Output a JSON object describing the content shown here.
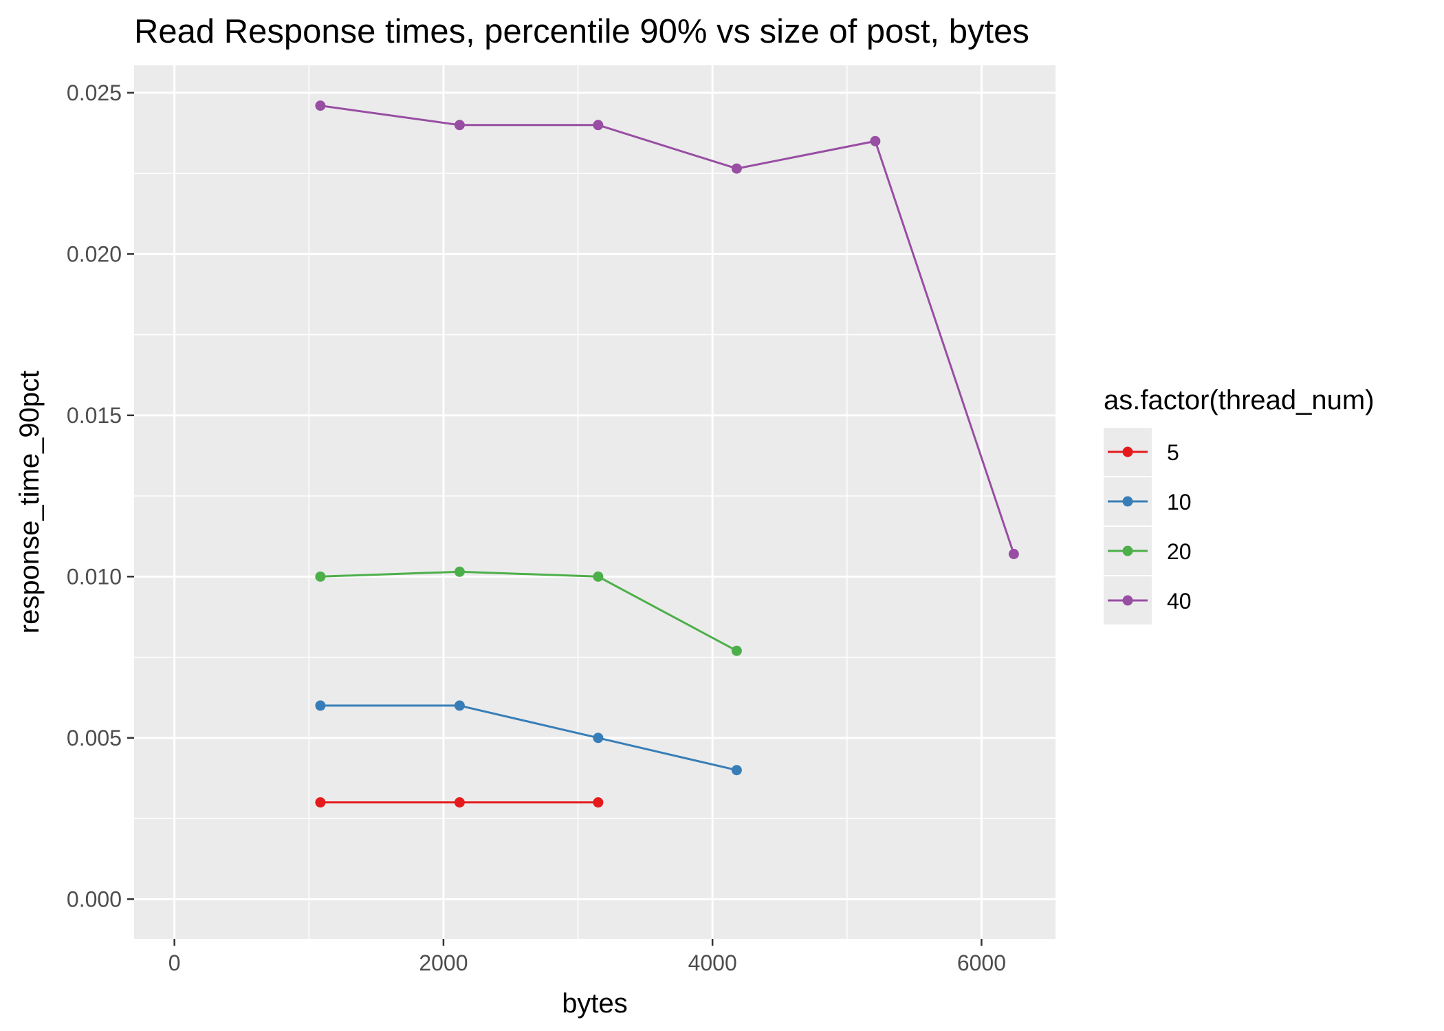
{
  "chart_data": {
    "type": "line",
    "title": "Read Response times, percentile 90% vs size of post, bytes",
    "xlabel": "bytes",
    "ylabel": "response_time_90pct",
    "xlim": [
      -300,
      6550
    ],
    "ylim": [
      -0.00123,
      0.02585
    ],
    "x_ticks": [
      0,
      2000,
      4000,
      6000
    ],
    "x_tick_labels": [
      "0",
      "2000",
      "4000",
      "6000"
    ],
    "y_ticks": [
      0.0,
      0.005,
      0.01,
      0.015,
      0.02,
      0.025
    ],
    "y_tick_labels": [
      "0.000",
      "0.005",
      "0.010",
      "0.015",
      "0.020",
      "0.025"
    ],
    "grid": true,
    "legend": {
      "title": "as.factor(thread_num)",
      "position": "right"
    },
    "series": [
      {
        "name": "5",
        "color": "#e41a1c",
        "points": [
          [
            1085,
            0.003
          ],
          [
            2120,
            0.003
          ],
          [
            3150,
            0.003
          ]
        ]
      },
      {
        "name": "10",
        "color": "#377eb8",
        "points": [
          [
            1085,
            0.006
          ],
          [
            2120,
            0.006
          ],
          [
            3150,
            0.005
          ],
          [
            4180,
            0.004
          ]
        ]
      },
      {
        "name": "20",
        "color": "#4daf4a",
        "points": [
          [
            1085,
            0.01
          ],
          [
            2120,
            0.01015
          ],
          [
            3150,
            0.01
          ],
          [
            4180,
            0.0077
          ]
        ]
      },
      {
        "name": "40",
        "color": "#984ea3",
        "points": [
          [
            1085,
            0.0246
          ],
          [
            2120,
            0.024
          ],
          [
            3150,
            0.024
          ],
          [
            4180,
            0.02265
          ],
          [
            5210,
            0.0235
          ],
          [
            6240,
            0.0107
          ]
        ]
      }
    ]
  }
}
